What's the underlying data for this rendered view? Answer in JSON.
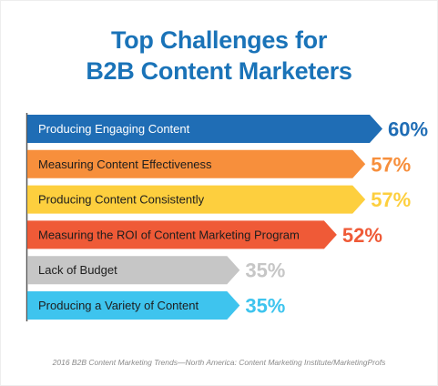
{
  "chart_data": {
    "type": "bar",
    "orientation": "horizontal",
    "title_lines": [
      "Top Challenges for",
      "B2B Content Marketers"
    ],
    "categories": [
      "Producing Engaging Content",
      "Measuring Content Effectiveness",
      "Producing Content Consistently",
      "Measuring the ROI of Content Marketing Program",
      "Lack of Budget",
      "Producing a Variety of Content"
    ],
    "values": [
      60,
      57,
      57,
      52,
      35,
      35
    ],
    "value_labels": [
      "60%",
      "57%",
      "57%",
      "52%",
      "35%",
      "35%"
    ],
    "colors": [
      "#1f6db5",
      "#f78f3c",
      "#fdcf3e",
      "#ef5a37",
      "#c6c6c6",
      "#3ec4ee"
    ],
    "xlim": [
      0,
      60
    ],
    "grid": false,
    "legend": "none"
  },
  "source_note": "2016 B2B Content Marketing Trends—North America: Content Marketing Institute/MarketingProfs"
}
